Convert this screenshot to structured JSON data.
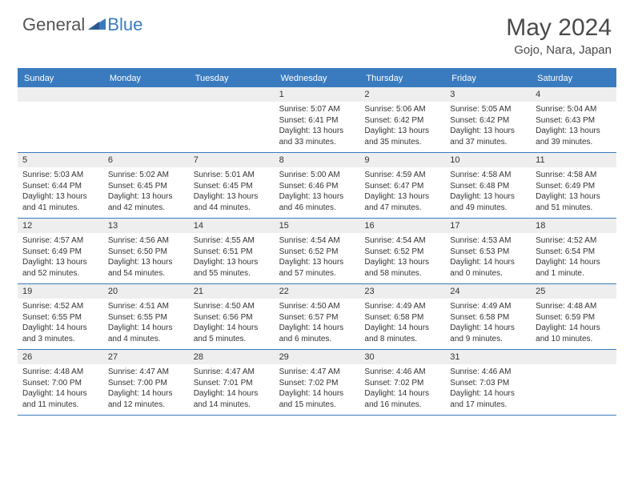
{
  "brand": {
    "part1": "General",
    "part2": "Blue"
  },
  "title": "May 2024",
  "location": "Gojo, Nara, Japan",
  "dayNames": [
    "Sunday",
    "Monday",
    "Tuesday",
    "Wednesday",
    "Thursday",
    "Friday",
    "Saturday"
  ],
  "colors": {
    "accent": "#3a7bbf",
    "band": "#eeeeee",
    "text": "#333333",
    "bg": "#ffffff"
  },
  "weeks": [
    [
      {
        "num": "",
        "sunrise": "",
        "sunset": "",
        "daylight": ""
      },
      {
        "num": "",
        "sunrise": "",
        "sunset": "",
        "daylight": ""
      },
      {
        "num": "",
        "sunrise": "",
        "sunset": "",
        "daylight": ""
      },
      {
        "num": "1",
        "sunrise": "Sunrise: 5:07 AM",
        "sunset": "Sunset: 6:41 PM",
        "daylight": "Daylight: 13 hours and 33 minutes."
      },
      {
        "num": "2",
        "sunrise": "Sunrise: 5:06 AM",
        "sunset": "Sunset: 6:42 PM",
        "daylight": "Daylight: 13 hours and 35 minutes."
      },
      {
        "num": "3",
        "sunrise": "Sunrise: 5:05 AM",
        "sunset": "Sunset: 6:42 PM",
        "daylight": "Daylight: 13 hours and 37 minutes."
      },
      {
        "num": "4",
        "sunrise": "Sunrise: 5:04 AM",
        "sunset": "Sunset: 6:43 PM",
        "daylight": "Daylight: 13 hours and 39 minutes."
      }
    ],
    [
      {
        "num": "5",
        "sunrise": "Sunrise: 5:03 AM",
        "sunset": "Sunset: 6:44 PM",
        "daylight": "Daylight: 13 hours and 41 minutes."
      },
      {
        "num": "6",
        "sunrise": "Sunrise: 5:02 AM",
        "sunset": "Sunset: 6:45 PM",
        "daylight": "Daylight: 13 hours and 42 minutes."
      },
      {
        "num": "7",
        "sunrise": "Sunrise: 5:01 AM",
        "sunset": "Sunset: 6:45 PM",
        "daylight": "Daylight: 13 hours and 44 minutes."
      },
      {
        "num": "8",
        "sunrise": "Sunrise: 5:00 AM",
        "sunset": "Sunset: 6:46 PM",
        "daylight": "Daylight: 13 hours and 46 minutes."
      },
      {
        "num": "9",
        "sunrise": "Sunrise: 4:59 AM",
        "sunset": "Sunset: 6:47 PM",
        "daylight": "Daylight: 13 hours and 47 minutes."
      },
      {
        "num": "10",
        "sunrise": "Sunrise: 4:58 AM",
        "sunset": "Sunset: 6:48 PM",
        "daylight": "Daylight: 13 hours and 49 minutes."
      },
      {
        "num": "11",
        "sunrise": "Sunrise: 4:58 AM",
        "sunset": "Sunset: 6:49 PM",
        "daylight": "Daylight: 13 hours and 51 minutes."
      }
    ],
    [
      {
        "num": "12",
        "sunrise": "Sunrise: 4:57 AM",
        "sunset": "Sunset: 6:49 PM",
        "daylight": "Daylight: 13 hours and 52 minutes."
      },
      {
        "num": "13",
        "sunrise": "Sunrise: 4:56 AM",
        "sunset": "Sunset: 6:50 PM",
        "daylight": "Daylight: 13 hours and 54 minutes."
      },
      {
        "num": "14",
        "sunrise": "Sunrise: 4:55 AM",
        "sunset": "Sunset: 6:51 PM",
        "daylight": "Daylight: 13 hours and 55 minutes."
      },
      {
        "num": "15",
        "sunrise": "Sunrise: 4:54 AM",
        "sunset": "Sunset: 6:52 PM",
        "daylight": "Daylight: 13 hours and 57 minutes."
      },
      {
        "num": "16",
        "sunrise": "Sunrise: 4:54 AM",
        "sunset": "Sunset: 6:52 PM",
        "daylight": "Daylight: 13 hours and 58 minutes."
      },
      {
        "num": "17",
        "sunrise": "Sunrise: 4:53 AM",
        "sunset": "Sunset: 6:53 PM",
        "daylight": "Daylight: 14 hours and 0 minutes."
      },
      {
        "num": "18",
        "sunrise": "Sunrise: 4:52 AM",
        "sunset": "Sunset: 6:54 PM",
        "daylight": "Daylight: 14 hours and 1 minute."
      }
    ],
    [
      {
        "num": "19",
        "sunrise": "Sunrise: 4:52 AM",
        "sunset": "Sunset: 6:55 PM",
        "daylight": "Daylight: 14 hours and 3 minutes."
      },
      {
        "num": "20",
        "sunrise": "Sunrise: 4:51 AM",
        "sunset": "Sunset: 6:55 PM",
        "daylight": "Daylight: 14 hours and 4 minutes."
      },
      {
        "num": "21",
        "sunrise": "Sunrise: 4:50 AM",
        "sunset": "Sunset: 6:56 PM",
        "daylight": "Daylight: 14 hours and 5 minutes."
      },
      {
        "num": "22",
        "sunrise": "Sunrise: 4:50 AM",
        "sunset": "Sunset: 6:57 PM",
        "daylight": "Daylight: 14 hours and 6 minutes."
      },
      {
        "num": "23",
        "sunrise": "Sunrise: 4:49 AM",
        "sunset": "Sunset: 6:58 PM",
        "daylight": "Daylight: 14 hours and 8 minutes."
      },
      {
        "num": "24",
        "sunrise": "Sunrise: 4:49 AM",
        "sunset": "Sunset: 6:58 PM",
        "daylight": "Daylight: 14 hours and 9 minutes."
      },
      {
        "num": "25",
        "sunrise": "Sunrise: 4:48 AM",
        "sunset": "Sunset: 6:59 PM",
        "daylight": "Daylight: 14 hours and 10 minutes."
      }
    ],
    [
      {
        "num": "26",
        "sunrise": "Sunrise: 4:48 AM",
        "sunset": "Sunset: 7:00 PM",
        "daylight": "Daylight: 14 hours and 11 minutes."
      },
      {
        "num": "27",
        "sunrise": "Sunrise: 4:47 AM",
        "sunset": "Sunset: 7:00 PM",
        "daylight": "Daylight: 14 hours and 12 minutes."
      },
      {
        "num": "28",
        "sunrise": "Sunrise: 4:47 AM",
        "sunset": "Sunset: 7:01 PM",
        "daylight": "Daylight: 14 hours and 14 minutes."
      },
      {
        "num": "29",
        "sunrise": "Sunrise: 4:47 AM",
        "sunset": "Sunset: 7:02 PM",
        "daylight": "Daylight: 14 hours and 15 minutes."
      },
      {
        "num": "30",
        "sunrise": "Sunrise: 4:46 AM",
        "sunset": "Sunset: 7:02 PM",
        "daylight": "Daylight: 14 hours and 16 minutes."
      },
      {
        "num": "31",
        "sunrise": "Sunrise: 4:46 AM",
        "sunset": "Sunset: 7:03 PM",
        "daylight": "Daylight: 14 hours and 17 minutes."
      },
      {
        "num": "",
        "sunrise": "",
        "sunset": "",
        "daylight": ""
      }
    ]
  ]
}
